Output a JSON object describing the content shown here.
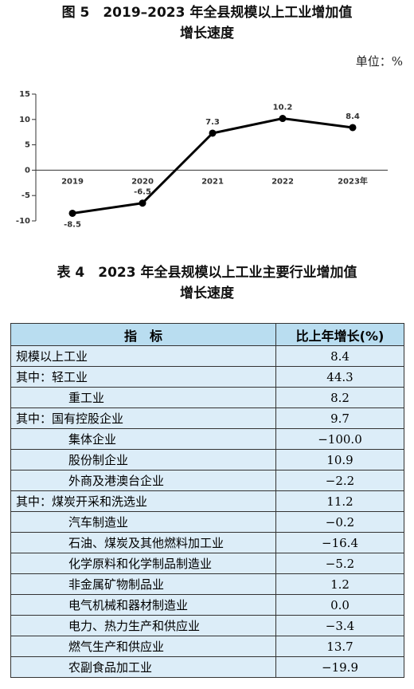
{
  "chart_data": {
    "type": "line",
    "title": [
      "图 5　2019–2023 年全县规模以上工业增加值",
      "增长速度"
    ],
    "unit": "单位：%",
    "categories": [
      "2019",
      "2020",
      "2021",
      "2022",
      "2023年"
    ],
    "values": [
      -8.5,
      -6.5,
      7.3,
      10.2,
      8.4
    ],
    "color": "#000000",
    "ylim": [
      -10,
      15
    ],
    "yticks": [
      -10,
      -5,
      0,
      5,
      10,
      15
    ]
  },
  "table": {
    "title": [
      "表 4　2023 年全县规模以上工业主要行业增加值",
      "增长速度"
    ],
    "header": [
      "指　标",
      "比上年增长(%)"
    ],
    "rows": [
      [
        "规模以上工业",
        "8.4"
      ],
      [
        "其中：轻工业",
        "44.3"
      ],
      [
        "重工业",
        "8.2"
      ],
      [
        "其中：国有控股企业",
        "9.7"
      ],
      [
        "集体企业",
        "−100.0"
      ],
      [
        "股份制企业",
        "10.9"
      ],
      [
        "外商及港澳台企业",
        "−2.2"
      ],
      [
        "其中：煤炭开采和洗选业",
        "11.2"
      ],
      [
        "汽车制造业",
        "−0.2"
      ],
      [
        "石油、煤炭及其他燃料加工业",
        "−16.4"
      ],
      [
        "化学原料和化学制品制造业",
        "−5.2"
      ],
      [
        "非金属矿物制品业",
        "1.2"
      ],
      [
        "电气机械和器材制造业",
        "0.0"
      ],
      [
        "电力、热力生产和供应业",
        "−3.4"
      ],
      [
        "燃气生产和供应业",
        "13.7"
      ],
      [
        "农副食品加工业",
        "−19.9"
      ]
    ]
  }
}
